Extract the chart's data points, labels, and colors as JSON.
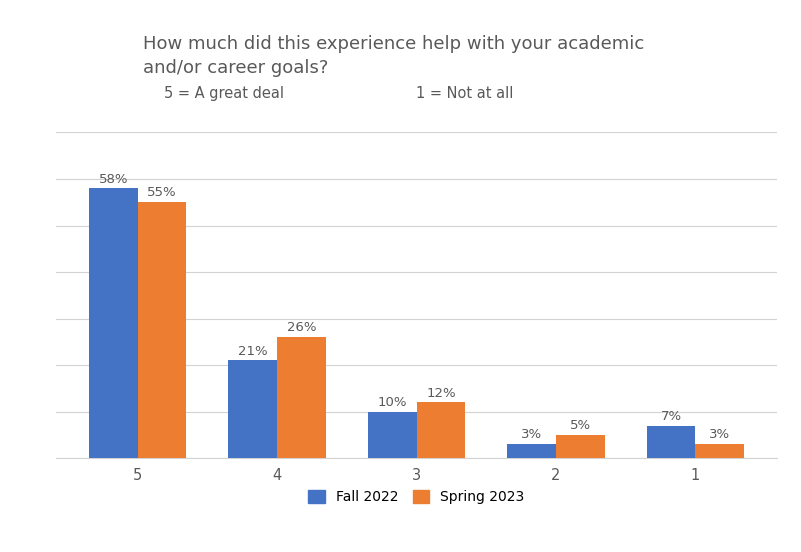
{
  "title": "How much did this experience help with your academic\nand/or career goals?",
  "subtitle_left": "5 = A great deal",
  "subtitle_right": "1 = Not at all",
  "categories": [
    5,
    4,
    3,
    2,
    1
  ],
  "fall_2022": [
    58,
    21,
    10,
    3,
    7
  ],
  "spring_2023": [
    55,
    26,
    12,
    5,
    3
  ],
  "fall_color": "#4472C4",
  "spring_color": "#ED7D31",
  "bar_width": 0.35,
  "ylim": [
    0,
    70
  ],
  "legend_labels": [
    "Fall 2022",
    "Spring 2023"
  ],
  "background_color": "#FFFFFF",
  "grid_color": "#D3D3D3",
  "title_fontsize": 13,
  "subtitle_fontsize": 10.5,
  "label_fontsize": 9.5,
  "tick_fontsize": 10.5,
  "text_color": "#595959"
}
